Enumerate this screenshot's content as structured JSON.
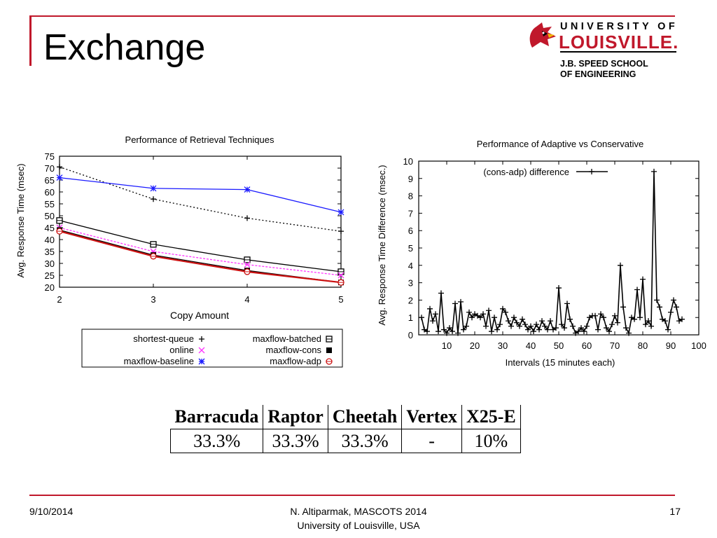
{
  "slide": {
    "title": "Exchange"
  },
  "logo": {
    "line1": "UNIVERSITY OF",
    "line2": "LOUISVILLE.",
    "line3": "J.B. SPEED SCHOOL",
    "line4": "OF ENGINEERING"
  },
  "footer": {
    "date": "9/10/2014",
    "center_line1": "N. Altiparmak, MASCOTS 2014",
    "center_line2": "University of Louisville, USA",
    "page": "17"
  },
  "table": {
    "headers": [
      "Barracuda",
      "Raptor",
      "Cheetah",
      "Vertex",
      "X25-E"
    ],
    "values": [
      "33.3%",
      "33.3%",
      "33.3%",
      "-",
      "10%"
    ]
  },
  "colors": {
    "accent": "#c0182b",
    "blue": "#1a1aff",
    "magenta": "#ff33ff",
    "red": "#cc1111",
    "black": "#000000"
  },
  "chart_data": [
    {
      "type": "line",
      "title": "Performance of Retrieval Techniques",
      "xlabel": "Copy Amount",
      "ylabel": "Avg. Response Time (msec)",
      "x": [
        2,
        3,
        4,
        5
      ],
      "xlim": [
        2,
        5
      ],
      "ylim": [
        20,
        75
      ],
      "xticks": [
        2,
        3,
        4,
        5
      ],
      "yticks": [
        20,
        25,
        30,
        35,
        40,
        45,
        50,
        55,
        60,
        65,
        70,
        75
      ],
      "legend_position": "bottom",
      "series": [
        {
          "name": "shortest-queue",
          "marker": "+",
          "color": "#000000",
          "dash": true,
          "values": [
            70.5,
            57,
            49,
            43.5
          ]
        },
        {
          "name": "maxflow-batched",
          "marker": "⊟",
          "color": "#000000",
          "dash": false,
          "values": [
            48,
            38,
            31.5,
            26.5
          ]
        },
        {
          "name": "online",
          "marker": "×",
          "color": "#ff33ff",
          "dash": true,
          "values": [
            45,
            35,
            29.5,
            25
          ]
        },
        {
          "name": "maxflow-cons",
          "marker": "■",
          "color": "#000000",
          "dash": false,
          "values": [
            44,
            33.5,
            27,
            22
          ]
        },
        {
          "name": "maxflow-baseline",
          "marker": "*",
          "color": "#1a1aff",
          "dash": false,
          "values": [
            66,
            61.5,
            61,
            51.5
          ]
        },
        {
          "name": "maxflow-adp",
          "marker": "⊖",
          "color": "#cc1111",
          "dash": false,
          "values": [
            43.5,
            33,
            26.5,
            22
          ]
        }
      ]
    },
    {
      "type": "line",
      "title": "Performance of Adaptive vs Conservative",
      "xlabel": "Intervals (15 minutes each)",
      "ylabel": "Avg. Response Time Difference (msec.)",
      "xlim": [
        0,
        100
      ],
      "ylim": [
        0,
        10
      ],
      "xticks": [
        10,
        20,
        30,
        40,
        50,
        60,
        70,
        80,
        90,
        100
      ],
      "yticks": [
        0,
        1,
        2,
        3,
        4,
        5,
        6,
        7,
        8,
        9,
        10
      ],
      "legend_position": "top-left",
      "series": [
        {
          "name": "(cons-adp) difference",
          "marker": "+",
          "color": "#000000",
          "x": [
            1,
            2,
            3,
            4,
            5,
            6,
            7,
            8,
            9,
            10,
            11,
            12,
            13,
            14,
            15,
            16,
            17,
            18,
            19,
            20,
            21,
            22,
            23,
            24,
            25,
            26,
            27,
            28,
            29,
            30,
            31,
            32,
            33,
            34,
            35,
            36,
            37,
            38,
            39,
            40,
            41,
            42,
            43,
            44,
            45,
            46,
            47,
            48,
            49,
            50,
            51,
            52,
            53,
            54,
            55,
            56,
            57,
            58,
            59,
            60,
            61,
            62,
            63,
            64,
            65,
            66,
            67,
            68,
            69,
            70,
            71,
            72,
            73,
            74,
            75,
            76,
            77,
            78,
            79,
            80,
            81,
            82,
            83,
            84,
            85,
            86,
            87,
            88,
            89,
            90,
            91,
            92,
            93,
            94
          ],
          "values": [
            1.0,
            0.3,
            0.2,
            1.5,
            0.8,
            1.2,
            0.2,
            2.4,
            0.3,
            0.1,
            0.4,
            0.2,
            1.8,
            0.1,
            1.9,
            0.3,
            0.5,
            1.3,
            1.0,
            1.2,
            1.1,
            1.0,
            1.2,
            0.5,
            1.4,
            0.2,
            1.0,
            0.3,
            0.6,
            1.5,
            1.3,
            0.8,
            0.5,
            1.0,
            0.7,
            0.5,
            0.9,
            0.6,
            0.3,
            0.5,
            0.2,
            0.6,
            0.3,
            0.8,
            0.5,
            0.3,
            0.8,
            0.3,
            0.4,
            2.7,
            0.6,
            0.4,
            1.8,
            0.9,
            0.5,
            0.1,
            0.2,
            0.4,
            0.2,
            0.5,
            1.0,
            1.1,
            1.1,
            0.3,
            1.2,
            1.0,
            0.4,
            0.2,
            0.6,
            1.1,
            0.7,
            4.0,
            1.6,
            0.4,
            0.1,
            1.0,
            0.9,
            2.6,
            1.0,
            3.2,
            0.6,
            0.8,
            0.5,
            9.4,
            2.0,
            1.6,
            0.9,
            0.8,
            0.3,
            1.3,
            2.0,
            1.6,
            0.8,
            0.9
          ]
        }
      ]
    }
  ]
}
